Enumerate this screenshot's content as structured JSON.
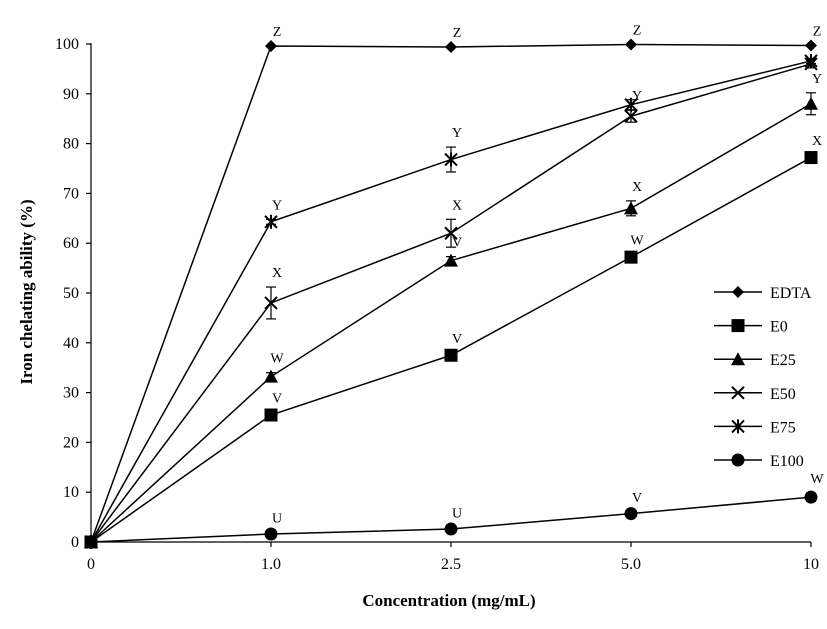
{
  "chart_data": {
    "type": "line",
    "xlabel": "Concentration (mg/mL)",
    "ylabel": "Iron chelating ability (%)",
    "categories": [
      "0",
      "1.0",
      "2.5",
      "5.0",
      "10"
    ],
    "ylim": [
      0,
      100
    ],
    "yticks": [
      0,
      10,
      20,
      30,
      40,
      50,
      60,
      70,
      80,
      90,
      100
    ],
    "grid": false,
    "legend_position": "right",
    "series": [
      {
        "name": "EDTA",
        "marker": "diamond",
        "values": [
          0,
          99.6,
          99.4,
          99.9,
          99.7
        ],
        "errors": [
          0,
          0,
          0,
          0,
          0
        ],
        "labels": [
          "",
          "Z",
          "Z",
          "Z",
          "Z"
        ]
      },
      {
        "name": "E0",
        "marker": "square",
        "values": [
          0,
          25.5,
          37.5,
          57.2,
          77.2
        ],
        "errors": [
          0,
          0.5,
          0.5,
          0.5,
          0.5
        ],
        "labels": [
          "",
          "V",
          "V",
          "W",
          "X"
        ]
      },
      {
        "name": "E25",
        "marker": "triangle",
        "values": [
          0,
          33.2,
          56.5,
          67.0,
          88.0
        ],
        "errors": [
          0,
          0.8,
          0.8,
          1.5,
          2.2
        ],
        "labels": [
          "",
          "W",
          "V",
          "X",
          "Y"
        ]
      },
      {
        "name": "E50",
        "marker": "x",
        "values": [
          0,
          48.0,
          62.0,
          85.5,
          96.0
        ],
        "errors": [
          0,
          3.2,
          2.8,
          1.2,
          0.8
        ],
        "labels": [
          "",
          "X",
          "X",
          "Y",
          ""
        ]
      },
      {
        "name": "E75",
        "marker": "star",
        "values": [
          0,
          64.3,
          76.8,
          87.8,
          96.6
        ],
        "errors": [
          0,
          0.5,
          2.5,
          1.0,
          0.5
        ],
        "labels": [
          "",
          "Y",
          "Y",
          "",
          ""
        ]
      },
      {
        "name": "E100",
        "marker": "circle",
        "values": [
          0,
          1.6,
          2.6,
          5.7,
          9.0
        ],
        "errors": [
          0,
          0.3,
          0.3,
          0.3,
          0.8
        ],
        "labels": [
          "",
          "U",
          "U",
          "V",
          "W"
        ]
      }
    ]
  }
}
